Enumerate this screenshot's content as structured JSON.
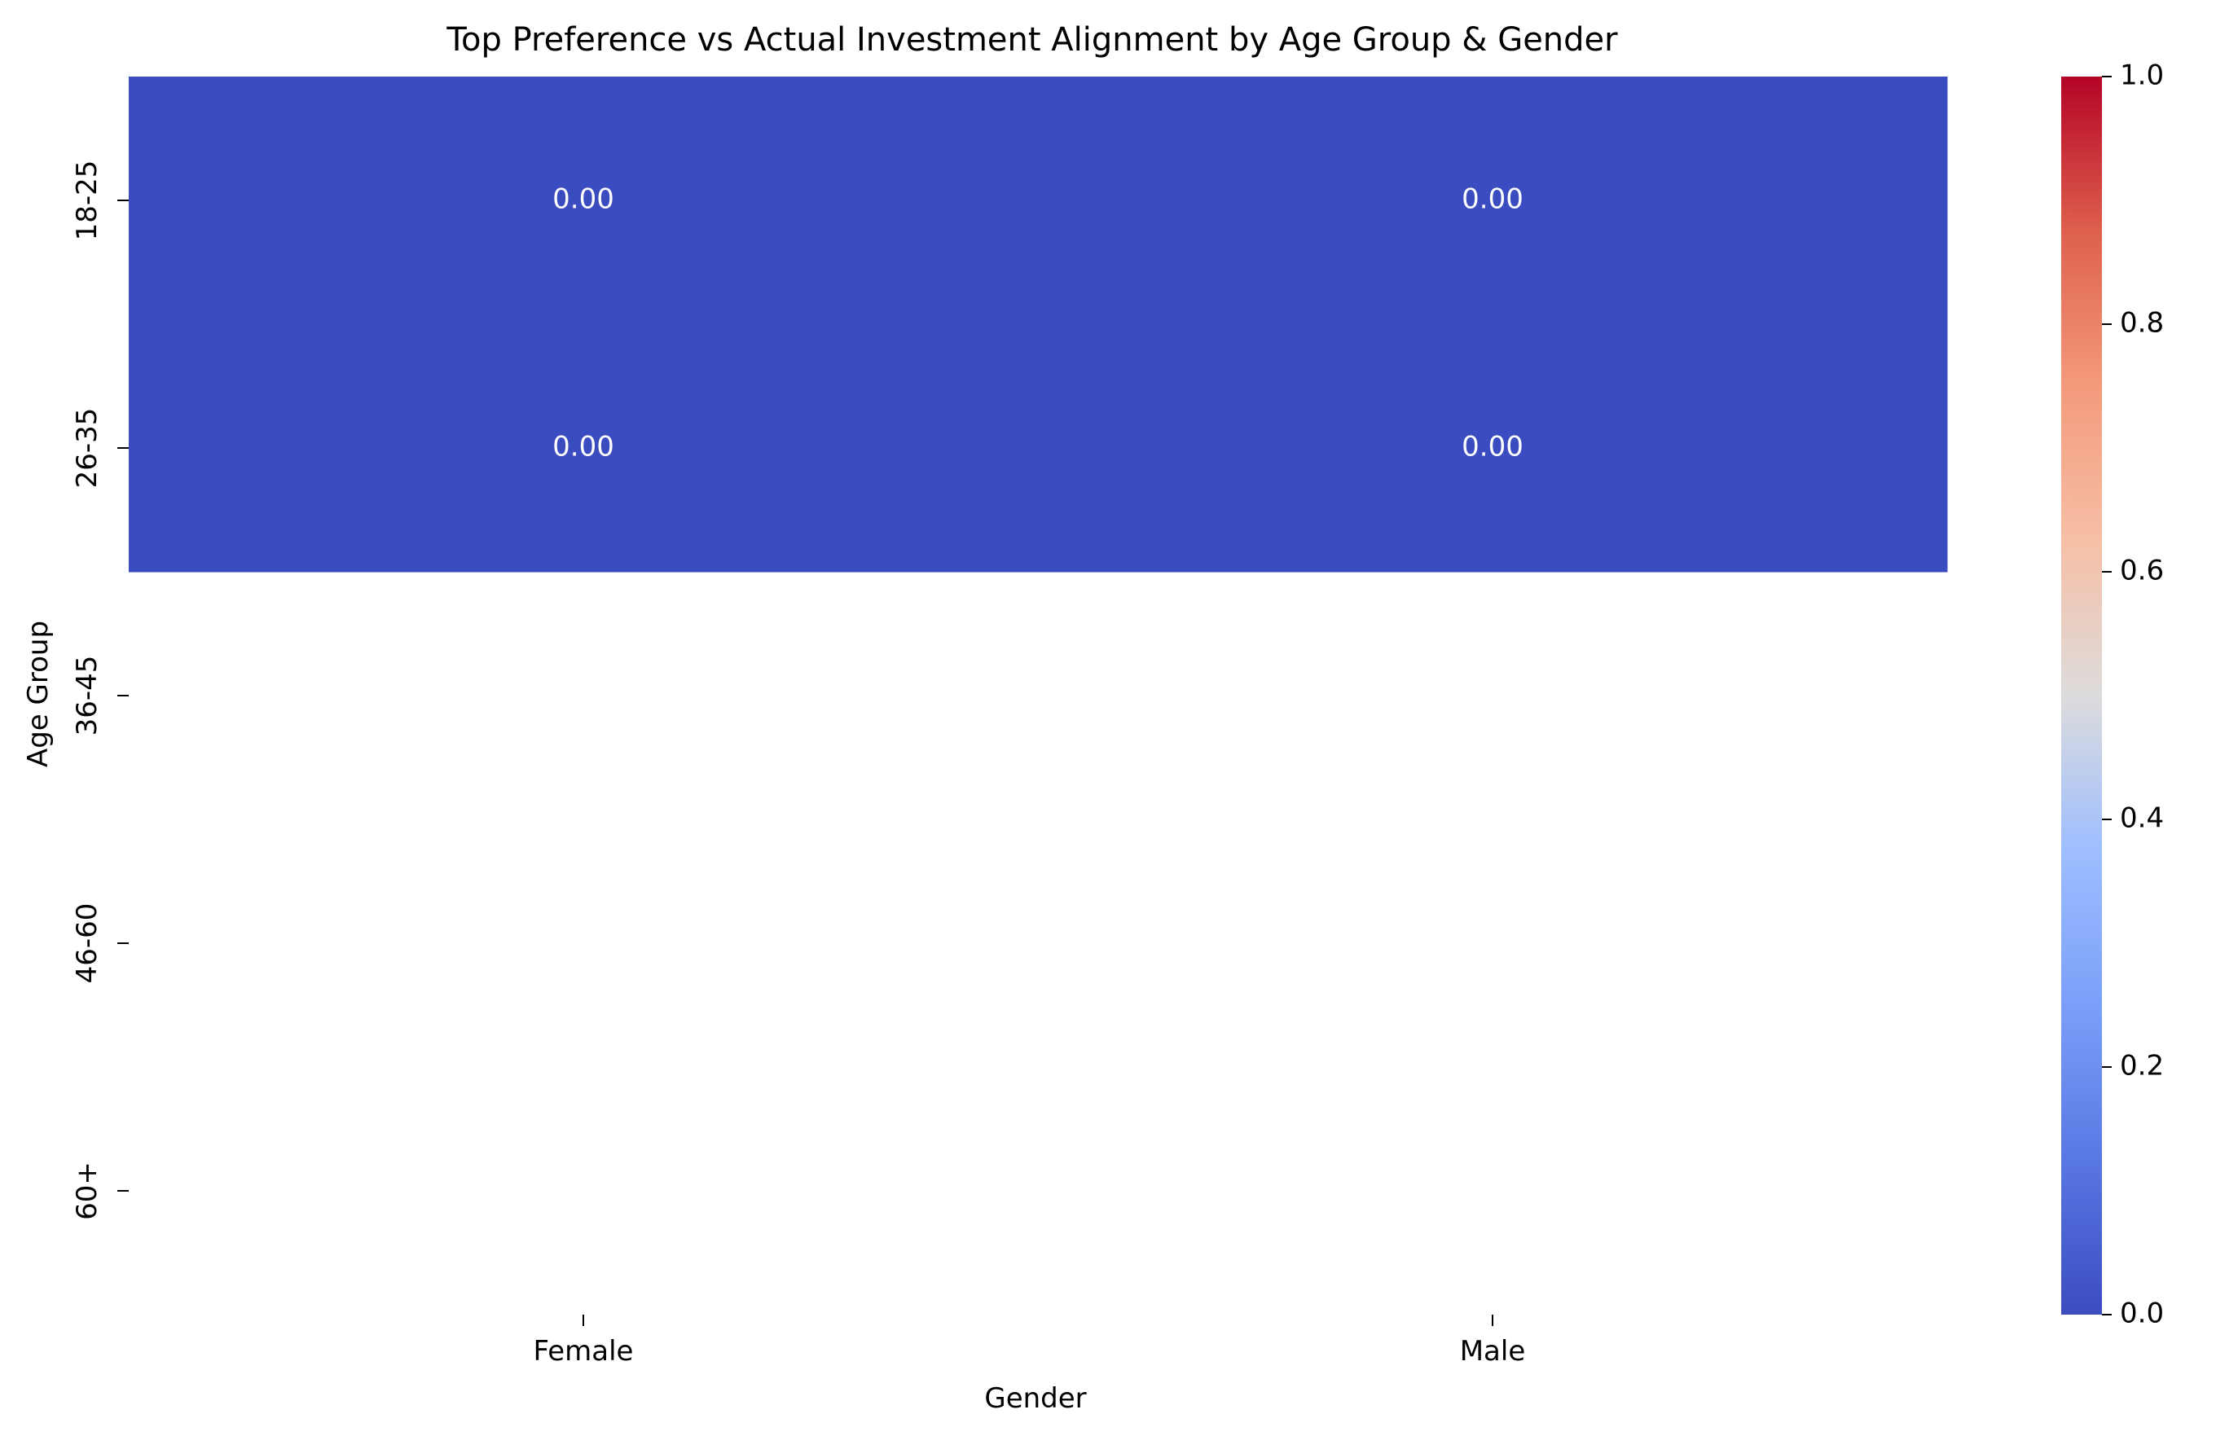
{
  "chart_data": {
    "type": "heatmap",
    "title": "Top Preference vs Actual Investment Alignment by Age Group & Gender",
    "xlabel": "Gender",
    "ylabel": "Age Group",
    "x_categories": [
      "Female",
      "Male"
    ],
    "y_categories": [
      "18-25",
      "26-35",
      "36-45",
      "46-60",
      "60+"
    ],
    "values": [
      [
        0.0,
        0.0
      ],
      [
        0.0,
        0.0
      ],
      [
        null,
        null
      ],
      [
        null,
        null
      ],
      [
        null,
        null
      ]
    ],
    "cell_labels": [
      [
        "0.00",
        "0.00"
      ],
      [
        "0.00",
        "0.00"
      ],
      [
        "",
        ""
      ],
      [
        "",
        ""
      ],
      [
        "",
        ""
      ]
    ],
    "colormap": "coolwarm",
    "color_low": "#3b4cc0",
    "color_mid": "#dddddd",
    "color_high": "#b40426",
    "vmin": 0.0,
    "vmax": 1.0,
    "colorbar_ticks": [
      "0.0",
      "0.2",
      "0.4",
      "0.6",
      "0.8",
      "1.0"
    ],
    "cell_label_color": "#ffffff"
  }
}
